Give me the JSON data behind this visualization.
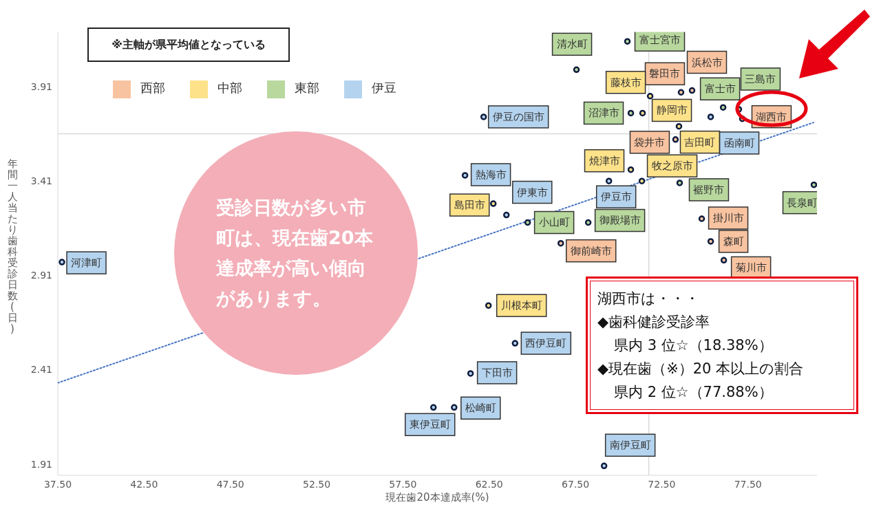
{
  "chart_data": {
    "type": "scatter",
    "xlabel": "現在歯20本達成率(%)",
    "ylabel": "年間一人当たり歯科受診日数(日)",
    "xlim": [
      37.5,
      81.5
    ],
    "ylim": [
      1.85,
      4.2
    ],
    "xticks": [
      {
        "value": 37.5,
        "label": "37.50"
      },
      {
        "value": 42.5,
        "label": "42.50"
      },
      {
        "value": 47.5,
        "label": "47.50"
      },
      {
        "value": 52.5,
        "label": "52.50"
      },
      {
        "value": 57.5,
        "label": "57.50"
      },
      {
        "value": 62.5,
        "label": "62.50"
      },
      {
        "value": 67.5,
        "label": "67.50"
      },
      {
        "value": 72.5,
        "label": "72.50"
      },
      {
        "value": 77.5,
        "label": "77.50"
      }
    ],
    "yticks": [
      1.91,
      2.41,
      2.91,
      3.41,
      3.91
    ],
    "grid": false,
    "legend": "top left",
    "marker": "circle",
    "ref_lines": [
      {
        "axis": "y",
        "value": 3.66,
        "color": "#d9d9d9"
      },
      {
        "axis": "x",
        "value": 71.75,
        "color": "#d9d9d9"
      }
    ],
    "series": [
      {
        "type": "line",
        "color": "#4472c4",
        "line_style": "dotted",
        "marker": "none",
        "x": [
          37.5,
          81.3
        ],
        "values": [
          2.34,
          3.72
        ]
      },
      {
        "name": "西部",
        "color": "#f8c3a0",
        "x": [
          73.62,
          74.26,
          77.17,
          73.3,
          74.82,
          75.34,
          76.1,
          66.65
        ],
        "values": [
          3.88,
          3.89,
          3.74,
          3.63,
          3.21,
          3.09,
          2.99,
          3.08
        ],
        "value_labels": [
          "磐田市",
          "浜松市",
          "湖西市",
          "袋井市",
          "掛川市",
          "森町",
          "菊川市",
          "御前崎市"
        ]
      },
      {
        "name": "中部",
        "color": "#fde28a",
        "x": [
          71.83,
          71.39,
          73.5,
          70.71,
          71.35,
          62.74,
          62.46
        ],
        "values": [
          3.86,
          3.77,
          3.7,
          3.47,
          3.41,
          3.29,
          2.75
        ],
        "value_labels": [
          "藤枝市",
          "静岡市",
          "吉田町",
          "焼津市",
          "牧之原市",
          "島田市",
          "川根本町"
        ]
      },
      {
        "name": "東部",
        "color": "#b8d89e",
        "x": [
          67.56,
          70.51,
          76.06,
          76.97,
          70.71,
          73.54,
          81.32,
          64.73,
          68.24
        ],
        "values": [
          4.0,
          4.15,
          3.8,
          3.79,
          3.77,
          3.4,
          3.39,
          3.19,
          3.19
        ],
        "value_labels": [
          "清水町",
          "富士宮市",
          "富士市",
          "三島市",
          "沼津市",
          "裾野市",
          "長泉町",
          "小山町",
          "御殿場市"
        ]
      },
      {
        "name": "伊豆",
        "color": "#b4d3ee",
        "x": [
          62.18,
          75.34,
          61.1,
          63.5,
          69.44,
          37.74,
          64.0,
          61.42,
          60.47,
          59.27,
          69.16
        ],
        "values": [
          3.75,
          3.75,
          3.44,
          3.23,
          3.41,
          2.98,
          2.55,
          2.39,
          2.21,
          2.21,
          1.9
        ],
        "value_labels": [
          "伊豆の国市",
          "函南町",
          "熱海市",
          "伊東市",
          "伊豆市",
          "河津町",
          "西伊豆町",
          "下田市",
          "松崎町",
          "東伊豆町",
          "南伊豆町"
        ]
      }
    ],
    "annotations": [
      "※主軸が県平均値となっている",
      "受診日数が多い市町は、現在歯20本達成率が高い傾向があります。",
      "湖西市は・・・",
      "◆歯科健診受診率",
      "県内 3 位☆（18.38%）",
      "◆現在歯（※）20 本以上の割合",
      "県内 2 位☆（77.88%）"
    ]
  }
}
